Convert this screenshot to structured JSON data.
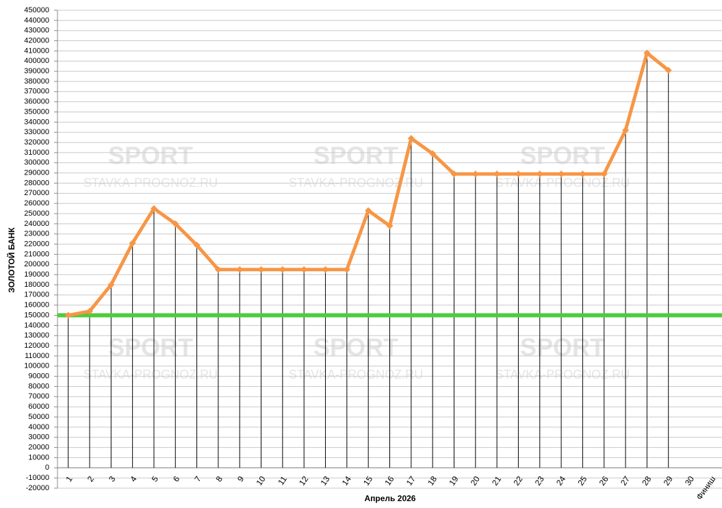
{
  "chart_data": {
    "type": "line",
    "x_label": "Апрель 2026",
    "y_label": "ЗОЛОТОЙ БАНК",
    "categories": [
      "1",
      "2",
      "3",
      "4",
      "5",
      "6",
      "7",
      "8",
      "9",
      "10",
      "11",
      "12",
      "13",
      "14",
      "15",
      "16",
      "17",
      "18",
      "19",
      "20",
      "21",
      "22",
      "23",
      "24",
      "25",
      "26",
      "27",
      "28",
      "29",
      "30",
      "Финиш"
    ],
    "series": [
      {
        "name": "Банк",
        "color": "#f79646",
        "values": [
          150000,
          154000,
          180000,
          221000,
          255000,
          240000,
          219000,
          195000,
          195000,
          195000,
          195000,
          195000,
          195000,
          195000,
          253000,
          238000,
          324000,
          309000,
          289000,
          289000,
          289000,
          289000,
          289000,
          289000,
          289000,
          289000,
          332000,
          408000,
          391000,
          null,
          null
        ]
      }
    ],
    "reference_line": {
      "value": 150000,
      "color": "#4ccc3c"
    },
    "drop_lines": true,
    "grid": true,
    "ylim": [
      -20000,
      450000
    ],
    "yticks": [
      -20000,
      -10000,
      0,
      10000,
      20000,
      30000,
      40000,
      50000,
      60000,
      70000,
      80000,
      90000,
      100000,
      110000,
      120000,
      130000,
      140000,
      150000,
      160000,
      170000,
      180000,
      190000,
      200000,
      210000,
      220000,
      230000,
      240000,
      250000,
      260000,
      270000,
      280000,
      290000,
      300000,
      310000,
      320000,
      330000,
      340000,
      350000,
      360000,
      370000,
      380000,
      390000,
      400000,
      410000,
      420000,
      430000,
      440000,
      450000
    ],
    "watermark": {
      "brand": "SPORT",
      "site": "STAVKA-PROGNOZ.RU"
    }
  }
}
